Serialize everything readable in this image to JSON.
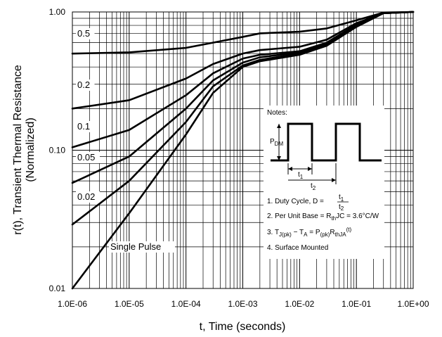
{
  "chart_data": {
    "type": "line",
    "title": "",
    "xlabel": "t, Time (seconds)",
    "ylabel": "r(t), Transient Thermal Resistance",
    "ylabel2": "(Normalized)",
    "xscale": "log",
    "yscale": "log",
    "xlim": [
      1e-06,
      1
    ],
    "ylim": [
      0.01,
      1
    ],
    "grid": true,
    "x_ticks": [
      "1.0E-06",
      "1.0E-05",
      "1.0E-04",
      "1.0E-03",
      "1.0E-02",
      "1.0E-01",
      "1.0E+00"
    ],
    "y_ticks": [
      "0.01",
      "0.10",
      "1.00"
    ],
    "series": [
      {
        "name": "0.5",
        "x": [
          1e-06,
          1e-05,
          0.0001,
          0.0003,
          0.001,
          0.002,
          0.01,
          0.03,
          0.1,
          0.3,
          1
        ],
        "y": [
          0.5,
          0.51,
          0.55,
          0.6,
          0.66,
          0.7,
          0.72,
          0.76,
          0.87,
          0.99,
          1.0
        ]
      },
      {
        "name": "0.2",
        "x": [
          1e-06,
          1e-05,
          0.0001,
          0.0003,
          0.001,
          0.002,
          0.01,
          0.03,
          0.1,
          0.3,
          1
        ],
        "y": [
          0.2,
          0.23,
          0.33,
          0.42,
          0.5,
          0.53,
          0.56,
          0.63,
          0.83,
          0.98,
          1.0
        ]
      },
      {
        "name": "0.1",
        "x": [
          1e-06,
          1e-05,
          0.0001,
          0.0003,
          0.001,
          0.002,
          0.01,
          0.03,
          0.1,
          0.3,
          1
        ],
        "y": [
          0.105,
          0.14,
          0.25,
          0.36,
          0.46,
          0.49,
          0.52,
          0.6,
          0.81,
          0.98,
          1.0
        ]
      },
      {
        "name": "0.05",
        "x": [
          1e-06,
          1e-05,
          0.0001,
          0.0003,
          0.001,
          0.002,
          0.01,
          0.03,
          0.1,
          0.3,
          1
        ],
        "y": [
          0.058,
          0.09,
          0.2,
          0.32,
          0.43,
          0.47,
          0.51,
          0.59,
          0.8,
          0.98,
          1.0
        ]
      },
      {
        "name": "0.02",
        "x": [
          1e-06,
          1e-05,
          0.0001,
          0.0003,
          0.001,
          0.002,
          0.01,
          0.03,
          0.1,
          0.3,
          1
        ],
        "y": [
          0.029,
          0.06,
          0.16,
          0.29,
          0.41,
          0.45,
          0.5,
          0.58,
          0.79,
          0.98,
          1.0
        ]
      },
      {
        "name": "Single Pulse",
        "x": [
          1e-06,
          1e-05,
          0.0001,
          0.0003,
          0.001,
          0.002,
          0.01,
          0.03,
          0.1,
          0.3,
          1
        ],
        "y": [
          0.01,
          0.035,
          0.13,
          0.26,
          0.4,
          0.44,
          0.49,
          0.57,
          0.78,
          0.98,
          1.0
        ]
      }
    ]
  },
  "notes": {
    "title": "Notes:",
    "pdm": "P",
    "pdm_sub": "DM",
    "t1": "t",
    "t1_sub": "1",
    "t2": "t",
    "t2_sub": "2",
    "line1_prefix": "1. Duty Cycle, D = ",
    "line1_num": "t",
    "line1_num_sub": "1",
    "line1_den": "t",
    "line1_den_sub": "2",
    "line2_prefix": "2. Per Unit Base = R",
    "line2_sub": "th",
    "line2_suffix": "JC = 3.6°C/W",
    "line3_a": "3. T",
    "line3_a_sub": "J(pk)",
    "line3_b": " − T",
    "line3_b_sub": "A",
    "line3_c": " = P",
    "line3_c_sub": "(pk)",
    "line3_d": "R",
    "line3_d_sub": "thJA",
    "line3_e": "(t)",
    "line4": "4. Surface Mounted"
  }
}
